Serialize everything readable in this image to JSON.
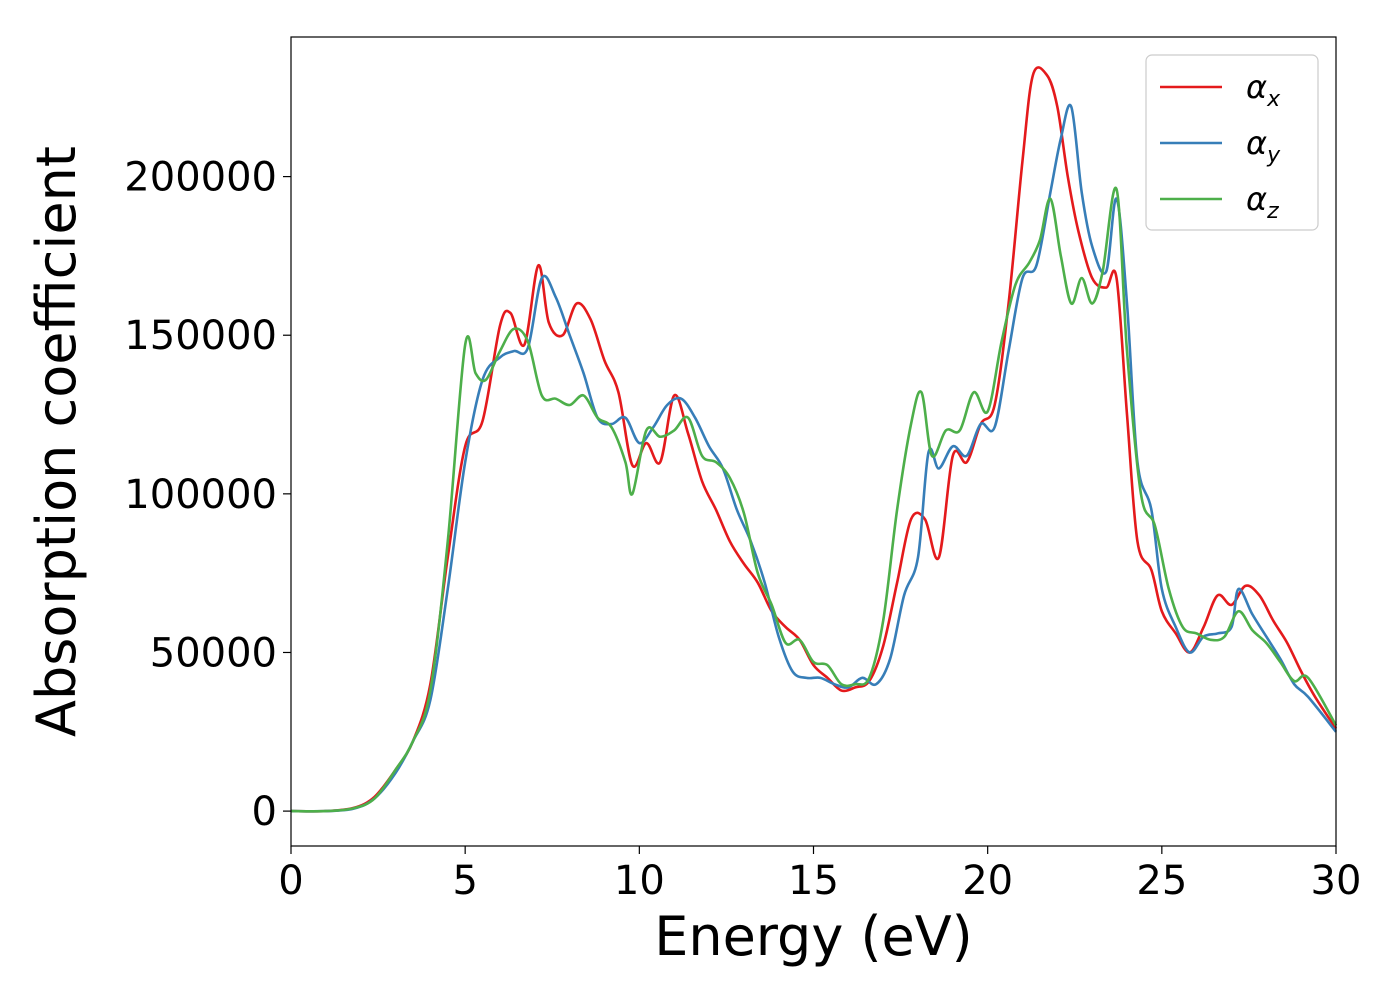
{
  "chart_data": {
    "type": "line",
    "title": "",
    "xlabel": "Energy (eV)",
    "ylabel": "Absorption coefficient",
    "xlim": [
      0,
      30
    ],
    "ylim": [
      -11000,
      244000
    ],
    "xticks": [
      0,
      5,
      10,
      15,
      20,
      25,
      30
    ],
    "yticks": [
      0,
      50000,
      100000,
      150000,
      200000
    ],
    "legend": {
      "position": "top-right"
    },
    "series": [
      {
        "name": "αx",
        "symbol": "α",
        "subscript": "x",
        "color": "#e41a1c",
        "x": [
          0,
          1,
          1.8,
          2.4,
          3.0,
          3.5,
          4.0,
          4.5,
          5.0,
          5.5,
          6.0,
          6.3,
          6.7,
          7.1,
          7.4,
          7.8,
          8.2,
          8.6,
          9.0,
          9.4,
          9.8,
          10.2,
          10.6,
          11.0,
          11.4,
          11.8,
          12.2,
          12.6,
          13.0,
          13.4,
          13.8,
          14.2,
          14.6,
          15.0,
          15.4,
          15.8,
          16.2,
          16.6,
          17.0,
          17.4,
          17.8,
          18.2,
          18.6,
          19.0,
          19.4,
          19.8,
          20.2,
          20.6,
          21.0,
          21.3,
          21.7,
          22.0,
          22.3,
          22.6,
          23.0,
          23.4,
          23.7,
          24.0,
          24.3,
          24.7,
          25.0,
          25.4,
          25.8,
          26.2,
          26.6,
          27.0,
          27.4,
          27.8,
          28.2,
          28.6,
          29.0,
          29.4,
          30.0
        ],
        "values": [
          0,
          0,
          1000,
          4500,
          13000,
          22000,
          40000,
          80000,
          115000,
          123000,
          153000,
          157000,
          147000,
          172000,
          154000,
          150000,
          160000,
          155000,
          142000,
          132000,
          109000,
          116000,
          110000,
          131000,
          119000,
          104000,
          95000,
          85000,
          78000,
          72000,
          63000,
          58000,
          54000,
          46000,
          42000,
          38000,
          39000,
          41000,
          52000,
          72000,
          92000,
          92000,
          80000,
          112000,
          110000,
          122000,
          128000,
          160000,
          205000,
          232000,
          232000,
          222000,
          200000,
          183000,
          168000,
          165000,
          168000,
          125000,
          85000,
          76000,
          63000,
          56000,
          50000,
          58000,
          68000,
          65000,
          71000,
          68000,
          60000,
          53000,
          44000,
          36000,
          26000
        ]
      },
      {
        "name": "αy",
        "symbol": "α",
        "subscript": "y",
        "color": "#377eb8",
        "x": [
          0,
          1,
          1.8,
          2.4,
          3.0,
          3.5,
          4.0,
          4.5,
          5.0,
          5.5,
          6.0,
          6.4,
          6.8,
          7.2,
          7.6,
          8.0,
          8.4,
          8.8,
          9.2,
          9.6,
          10.0,
          10.4,
          10.8,
          11.2,
          11.6,
          12.0,
          12.4,
          12.8,
          13.2,
          13.6,
          14.0,
          14.4,
          14.8,
          15.2,
          15.6,
          16.0,
          16.4,
          16.8,
          17.2,
          17.6,
          18.0,
          18.3,
          18.6,
          19.0,
          19.4,
          19.8,
          20.2,
          20.6,
          21.0,
          21.4,
          21.8,
          22.1,
          22.4,
          22.7,
          23.0,
          23.4,
          23.7,
          24.0,
          24.3,
          24.7,
          25.0,
          25.4,
          25.8,
          26.2,
          26.6,
          27.0,
          27.2,
          27.6,
          28.0,
          28.4,
          28.8,
          29.2,
          30.0
        ],
        "values": [
          0,
          0,
          800,
          4000,
          12000,
          22000,
          35000,
          70000,
          110000,
          136000,
          143000,
          145000,
          146000,
          168000,
          162000,
          150000,
          138000,
          124000,
          122000,
          124000,
          116000,
          121000,
          128000,
          130000,
          124000,
          115000,
          108000,
          95000,
          85000,
          72000,
          55000,
          44000,
          42000,
          42000,
          40000,
          39000,
          42000,
          40000,
          48000,
          68000,
          80000,
          113000,
          108000,
          115000,
          112000,
          122000,
          121000,
          145000,
          168000,
          172000,
          195000,
          212000,
          222000,
          195000,
          178000,
          170000,
          193000,
          160000,
          110000,
          95000,
          70000,
          58000,
          50000,
          55000,
          56000,
          58000,
          70000,
          62000,
          55000,
          48000,
          40000,
          36000,
          25000
        ]
      },
      {
        "name": "αz",
        "symbol": "α",
        "subscript": "z",
        "color": "#4daf4a",
        "x": [
          0,
          1,
          1.8,
          2.4,
          3.0,
          3.5,
          4.0,
          4.5,
          5.0,
          5.3,
          5.6,
          6.0,
          6.4,
          6.8,
          7.2,
          7.6,
          8.0,
          8.4,
          8.8,
          9.2,
          9.6,
          9.8,
          10.2,
          10.6,
          11.0,
          11.4,
          11.8,
          12.2,
          12.6,
          13.0,
          13.4,
          13.8,
          14.2,
          14.6,
          15.0,
          15.4,
          15.8,
          16.2,
          16.6,
          17.0,
          17.4,
          17.8,
          18.1,
          18.4,
          18.8,
          19.2,
          19.6,
          20.0,
          20.4,
          20.8,
          21.2,
          21.5,
          21.8,
          22.1,
          22.4,
          22.7,
          23.0,
          23.3,
          23.7,
          24.0,
          24.4,
          24.8,
          25.2,
          25.6,
          26.0,
          26.4,
          26.8,
          27.2,
          27.6,
          28.0,
          28.4,
          28.8,
          29.2,
          30.0
        ],
        "values": [
          0,
          0,
          900,
          4000,
          13000,
          22000,
          38000,
          85000,
          147000,
          138000,
          136000,
          145000,
          152000,
          148000,
          131000,
          130000,
          128000,
          131000,
          124000,
          121000,
          110000,
          100000,
          120000,
          118000,
          120000,
          124000,
          112000,
          110000,
          105000,
          94000,
          75000,
          65000,
          53000,
          54000,
          47000,
          46000,
          40000,
          40000,
          42000,
          60000,
          95000,
          122000,
          132000,
          112000,
          120000,
          120000,
          132000,
          126000,
          148000,
          166000,
          173000,
          180000,
          193000,
          175000,
          160000,
          168000,
          160000,
          170000,
          196000,
          145000,
          100000,
          90000,
          70000,
          58000,
          56000,
          54000,
          55000,
          63000,
          57000,
          53000,
          47000,
          41000,
          42000,
          27000
        ]
      }
    ]
  }
}
